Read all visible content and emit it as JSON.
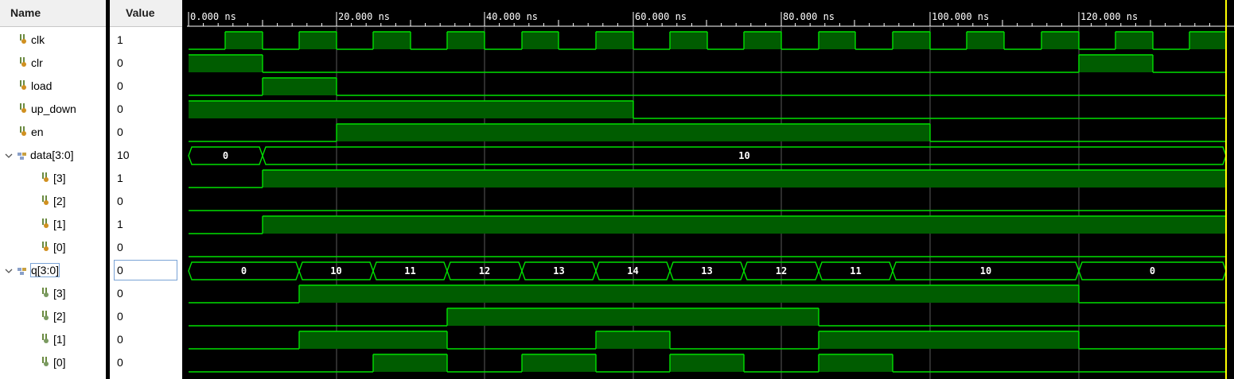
{
  "header": {
    "name_label": "Name",
    "value_label": "Value"
  },
  "time_labels": [
    "0.000 ns",
    "20.000 ns",
    "40.000 ns",
    "60.000 ns",
    "80.000 ns",
    "100.000 ns",
    "120.000 ns"
  ],
  "signals": [
    {
      "id": "clk",
      "label": "clk",
      "value": "1",
      "kind": "bit",
      "level": 0
    },
    {
      "id": "clr",
      "label": "clr",
      "value": "0",
      "kind": "bit",
      "level": 0
    },
    {
      "id": "load",
      "label": "load",
      "value": "0",
      "kind": "bit",
      "level": 0
    },
    {
      "id": "up_down",
      "label": "up_down",
      "value": "0",
      "kind": "bit",
      "level": 0
    },
    {
      "id": "en",
      "label": "en",
      "value": "0",
      "kind": "bit",
      "level": 0
    },
    {
      "id": "data",
      "label": "data[3:0]",
      "value": "10",
      "kind": "bus",
      "level": 0
    },
    {
      "id": "data3",
      "label": "[3]",
      "value": "1",
      "kind": "bit",
      "level": 1
    },
    {
      "id": "data2",
      "label": "[2]",
      "value": "0",
      "kind": "bit",
      "level": 1
    },
    {
      "id": "data1",
      "label": "[1]",
      "value": "1",
      "kind": "bit",
      "level": 1
    },
    {
      "id": "data0",
      "label": "[0]",
      "value": "0",
      "kind": "bit",
      "level": 1
    },
    {
      "id": "q",
      "label": "q[3:0]",
      "value": "0",
      "kind": "bus",
      "level": 0,
      "selected": true
    },
    {
      "id": "q3",
      "label": "[3]",
      "value": "0",
      "kind": "bit",
      "level": 1
    },
    {
      "id": "q2",
      "label": "[2]",
      "value": "0",
      "kind": "bit",
      "level": 1
    },
    {
      "id": "q1",
      "label": "[1]",
      "value": "0",
      "kind": "bit",
      "level": 1
    },
    {
      "id": "q0",
      "label": "[0]",
      "value": "0",
      "kind": "bit",
      "level": 1
    }
  ],
  "bus_segments": {
    "data": [
      "0",
      "10"
    ],
    "q": [
      "0",
      "10",
      "11",
      "12",
      "13",
      "14",
      "13",
      "12",
      "11",
      "10",
      "0"
    ]
  },
  "colors": {
    "wave": "#00e000",
    "fill": "#005c00",
    "grid": "#5a5a5a",
    "cursor": "#ffff00"
  }
}
